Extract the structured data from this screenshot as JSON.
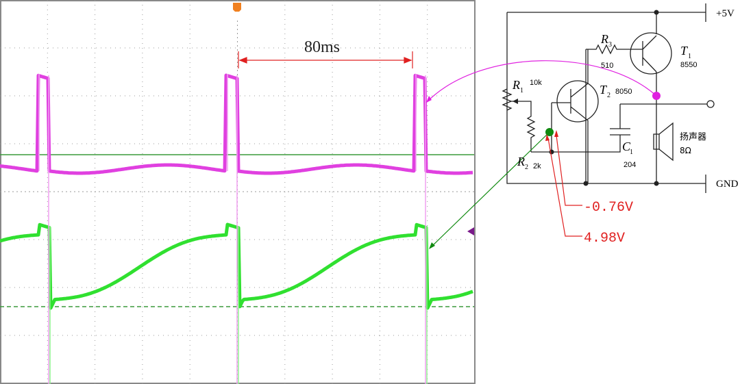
{
  "scope": {
    "trigger": "T",
    "time_span": "80ms"
  },
  "circuit": {
    "supply": "+5V",
    "ground": "GND",
    "components": [
      {
        "symbol": "R",
        "index": "3",
        "value": "510"
      },
      {
        "symbol": "T",
        "index": "1",
        "value": "8550"
      },
      {
        "symbol": "R",
        "index": "1",
        "value": "10k"
      },
      {
        "symbol": "T",
        "index": "2",
        "value": "8050"
      },
      {
        "symbol": "C",
        "index": "1",
        "value": "204"
      },
      {
        "symbol": "R",
        "index": "2",
        "value": "2k"
      }
    ],
    "speaker": {
      "label": "扬声器",
      "value": "8Ω"
    }
  },
  "annotations": [
    "-0.76V",
    "4.98V"
  ]
}
